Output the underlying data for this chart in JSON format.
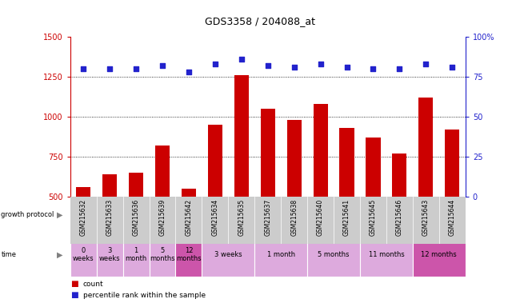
{
  "title": "GDS3358 / 204088_at",
  "samples": [
    "GSM215632",
    "GSM215633",
    "GSM215636",
    "GSM215639",
    "GSM215642",
    "GSM215634",
    "GSM215635",
    "GSM215637",
    "GSM215638",
    "GSM215640",
    "GSM215641",
    "GSM215645",
    "GSM215646",
    "GSM215643",
    "GSM215644"
  ],
  "bar_values": [
    560,
    640,
    650,
    820,
    550,
    950,
    1260,
    1050,
    980,
    1080,
    930,
    870,
    770,
    1120,
    920
  ],
  "dot_values": [
    80,
    80,
    80,
    82,
    78,
    83,
    86,
    82,
    81,
    83,
    81,
    80,
    80,
    83,
    81
  ],
  "bar_color": "#cc0000",
  "dot_color": "#2222cc",
  "ylim_left": [
    500,
    1500
  ],
  "ylim_right": [
    0,
    100
  ],
  "yticks_left": [
    500,
    750,
    1000,
    1250
  ],
  "yticks_right": [
    0,
    25,
    50,
    75
  ],
  "ytick_labels_left": [
    "500",
    "750",
    "1000",
    "1250"
  ],
  "ytick_labels_right": [
    "0",
    "25",
    "50",
    "75"
  ],
  "bg_color": "#ffffff",
  "plot_bg": "#ffffff",
  "tick_label_bg": "#cccccc",
  "left_label_color": "#cc0000",
  "right_label_color": "#2222cc",
  "proto_control_color": "#aaeebb",
  "proto_androgen_color": "#44cc44",
  "time_light_color": "#ddaadd",
  "time_dark_color": "#cc55aa"
}
